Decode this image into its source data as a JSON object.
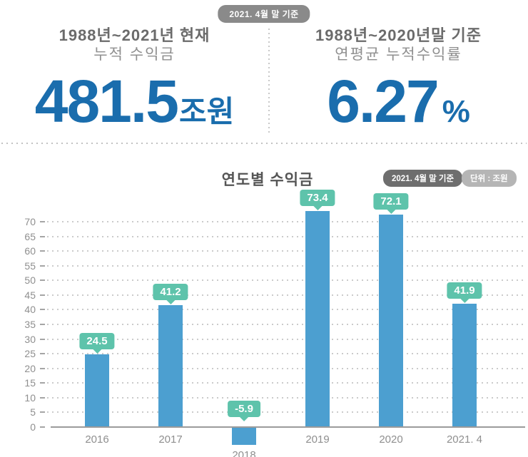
{
  "top": {
    "badge": "2021. 4월 말 기준",
    "left": {
      "title": "1988년~2021년 현재",
      "subtitle": "누적 수익금",
      "value": "481.5",
      "unit": "조원"
    },
    "right": {
      "title": "1988년~2020년말 기준",
      "subtitle": "연평균 누적수익률",
      "value": "6.27",
      "unit": "%"
    }
  },
  "chart": {
    "title": "연도별 수익금",
    "badge_date": "2021. 4월 말 기준",
    "badge_unit": "단위 : 조원"
  },
  "chart_data": {
    "type": "bar",
    "title": "연도별 수익금",
    "categories": [
      "2016",
      "2017",
      "2018",
      "2019",
      "2020",
      "2021. 4"
    ],
    "values": [
      24.5,
      41.2,
      -5.9,
      73.4,
      72.1,
      41.9
    ],
    "value_labels": [
      "24.5",
      "41.2",
      "-5.9",
      "73.4",
      "72.1",
      "41.9"
    ],
    "unit": "조원",
    "ylabel": "",
    "xlabel": "",
    "ylim": [
      0,
      70
    ],
    "ytick_step": 5,
    "yticks": [
      0,
      5,
      10,
      15,
      20,
      25,
      30,
      35,
      40,
      45,
      50,
      55,
      60,
      65,
      70
    ],
    "grid": "dotted-horizontal",
    "legend": "none"
  },
  "colors": {
    "accent_blue": "#1a6dad",
    "bar_blue": "#4c9fd0",
    "tag_teal": "#5ec3ab",
    "badge_gray": "#8a8a8a",
    "pill_dark": "#6e6e6e",
    "pill_light": "#b5b5b5",
    "head_gray": "#6b6b6b",
    "sub_gray": "#8f8f8f",
    "title_gray": "#555555",
    "axis_gray": "#9b9b9b"
  }
}
